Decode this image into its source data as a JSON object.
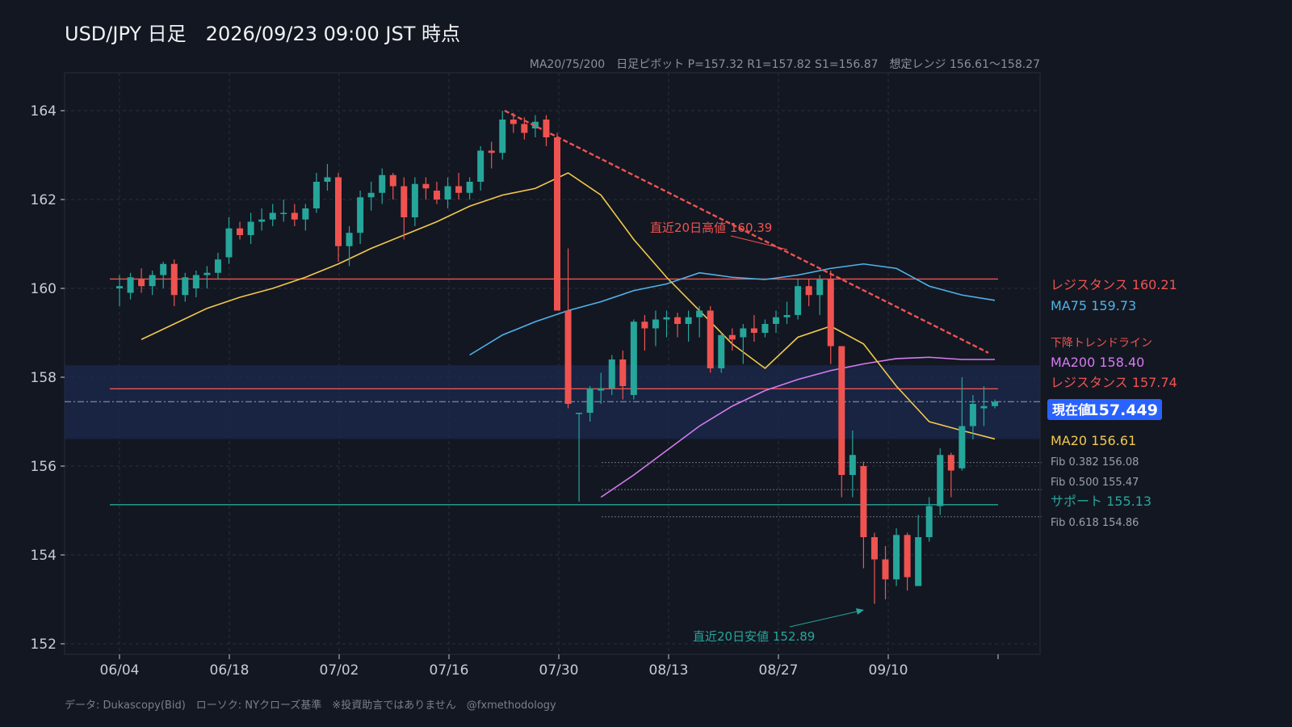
{
  "title": "USD/JPY 日足　2026/09/23 09:00 JST 時点",
  "subtitle": "MA20/75/200　日足ピボット P=157.32 R1=157.82 S1=156.87　想定レンジ 156.61〜158.27",
  "footer": "データ: Dukascopy(Bid)　ローソク: NYクローズ基準　※投資助言ではありません　@fxmethodology",
  "colors": {
    "background": "#131722",
    "up": "#26a69a",
    "down": "#ef5350",
    "ma20": "#f2c94c",
    "ma75": "#4fb3e8",
    "ma200": "#d67bef",
    "resistance": "#ef5350",
    "support": "#26a69a",
    "range_band": "#1b2a4e",
    "current_badge": "#2962ff"
  },
  "chart_data": {
    "type": "candlestick",
    "ylim": [
      152,
      165
    ],
    "yticks": [
      152,
      154,
      156,
      158,
      160,
      162,
      164
    ],
    "xticks": [
      "06/04",
      "06/18",
      "07/02",
      "07/16",
      "07/30",
      "08/13",
      "08/27",
      "09/10"
    ],
    "grid": true,
    "candles": [
      {
        "o": 160.0,
        "h": 160.3,
        "l": 159.6,
        "c": 160.05
      },
      {
        "o": 159.9,
        "h": 160.35,
        "l": 159.75,
        "c": 160.25
      },
      {
        "o": 160.2,
        "h": 160.45,
        "l": 159.9,
        "c": 160.05
      },
      {
        "o": 160.05,
        "h": 160.4,
        "l": 159.85,
        "c": 160.3
      },
      {
        "o": 160.3,
        "h": 160.6,
        "l": 160.0,
        "c": 160.55
      },
      {
        "o": 160.55,
        "h": 160.65,
        "l": 159.6,
        "c": 159.85
      },
      {
        "o": 159.85,
        "h": 160.35,
        "l": 159.7,
        "c": 160.25
      },
      {
        "o": 160.0,
        "h": 160.4,
        "l": 159.8,
        "c": 160.3
      },
      {
        "o": 160.3,
        "h": 160.5,
        "l": 160.0,
        "c": 160.35
      },
      {
        "o": 160.35,
        "h": 160.8,
        "l": 160.2,
        "c": 160.65
      },
      {
        "o": 160.7,
        "h": 161.6,
        "l": 160.55,
        "c": 161.35
      },
      {
        "o": 161.35,
        "h": 161.5,
        "l": 161.1,
        "c": 161.2
      },
      {
        "o": 161.2,
        "h": 161.7,
        "l": 161.0,
        "c": 161.5
      },
      {
        "o": 161.5,
        "h": 161.8,
        "l": 161.3,
        "c": 161.55
      },
      {
        "o": 161.55,
        "h": 161.9,
        "l": 161.4,
        "c": 161.7
      },
      {
        "o": 161.7,
        "h": 162.0,
        "l": 161.5,
        "c": 161.7
      },
      {
        "o": 161.7,
        "h": 161.9,
        "l": 161.4,
        "c": 161.55
      },
      {
        "o": 161.55,
        "h": 161.9,
        "l": 161.3,
        "c": 161.8
      },
      {
        "o": 161.8,
        "h": 162.6,
        "l": 161.7,
        "c": 162.4
      },
      {
        "o": 162.4,
        "h": 162.8,
        "l": 162.2,
        "c": 162.5
      },
      {
        "o": 162.5,
        "h": 162.6,
        "l": 160.6,
        "c": 160.95
      },
      {
        "o": 160.95,
        "h": 161.4,
        "l": 160.5,
        "c": 161.25
      },
      {
        "o": 161.25,
        "h": 162.2,
        "l": 161.0,
        "c": 162.05
      },
      {
        "o": 162.05,
        "h": 162.4,
        "l": 161.75,
        "c": 162.15
      },
      {
        "o": 162.15,
        "h": 162.7,
        "l": 161.9,
        "c": 162.55
      },
      {
        "o": 162.55,
        "h": 162.6,
        "l": 162.0,
        "c": 162.3
      },
      {
        "o": 162.3,
        "h": 162.5,
        "l": 161.1,
        "c": 161.6
      },
      {
        "o": 161.6,
        "h": 162.5,
        "l": 161.4,
        "c": 162.35
      },
      {
        "o": 162.35,
        "h": 162.5,
        "l": 162.0,
        "c": 162.25
      },
      {
        "o": 162.2,
        "h": 162.4,
        "l": 161.9,
        "c": 162.0
      },
      {
        "o": 162.0,
        "h": 162.5,
        "l": 161.8,
        "c": 162.3
      },
      {
        "o": 162.3,
        "h": 162.6,
        "l": 162.0,
        "c": 162.15
      },
      {
        "o": 162.15,
        "h": 162.5,
        "l": 162.0,
        "c": 162.4
      },
      {
        "o": 162.4,
        "h": 163.2,
        "l": 162.2,
        "c": 163.1
      },
      {
        "o": 163.1,
        "h": 163.3,
        "l": 162.7,
        "c": 163.05
      },
      {
        "o": 163.05,
        "h": 164.0,
        "l": 162.9,
        "c": 163.8
      },
      {
        "o": 163.8,
        "h": 163.95,
        "l": 163.5,
        "c": 163.7
      },
      {
        "o": 163.7,
        "h": 163.85,
        "l": 163.35,
        "c": 163.5
      },
      {
        "o": 163.6,
        "h": 163.9,
        "l": 163.4,
        "c": 163.75
      },
      {
        "o": 163.8,
        "h": 163.9,
        "l": 163.2,
        "c": 163.4
      },
      {
        "o": 163.4,
        "h": 163.5,
        "l": 159.5,
        "c": 159.5
      },
      {
        "o": 159.5,
        "h": 160.9,
        "l": 157.3,
        "c": 157.4
      },
      {
        "o": 157.2,
        "h": 157.2,
        "l": 155.2,
        "c": 157.2
      },
      {
        "o": 157.2,
        "h": 157.8,
        "l": 157.0,
        "c": 157.75
      },
      {
        "o": 157.7,
        "h": 158.1,
        "l": 157.4,
        "c": 157.75
      },
      {
        "o": 157.75,
        "h": 158.5,
        "l": 157.6,
        "c": 158.4
      },
      {
        "o": 158.4,
        "h": 158.6,
        "l": 157.5,
        "c": 157.8
      },
      {
        "o": 157.6,
        "h": 159.3,
        "l": 157.5,
        "c": 159.25
      },
      {
        "o": 159.25,
        "h": 159.4,
        "l": 158.6,
        "c": 159.1
      },
      {
        "o": 159.1,
        "h": 159.5,
        "l": 158.7,
        "c": 159.3
      },
      {
        "o": 159.3,
        "h": 159.5,
        "l": 158.9,
        "c": 159.35
      },
      {
        "o": 159.35,
        "h": 159.45,
        "l": 158.9,
        "c": 159.2
      },
      {
        "o": 159.2,
        "h": 159.5,
        "l": 158.8,
        "c": 159.35
      },
      {
        "o": 159.35,
        "h": 159.6,
        "l": 158.9,
        "c": 159.5
      },
      {
        "o": 159.5,
        "h": 159.6,
        "l": 158.1,
        "c": 158.2
      },
      {
        "o": 158.2,
        "h": 159.0,
        "l": 158.1,
        "c": 158.95
      },
      {
        "o": 158.95,
        "h": 159.1,
        "l": 158.6,
        "c": 158.85
      },
      {
        "o": 158.9,
        "h": 159.2,
        "l": 158.3,
        "c": 159.1
      },
      {
        "o": 159.1,
        "h": 159.4,
        "l": 158.8,
        "c": 159.0
      },
      {
        "o": 159.0,
        "h": 159.3,
        "l": 158.9,
        "c": 159.2
      },
      {
        "o": 159.2,
        "h": 159.5,
        "l": 159.0,
        "c": 159.35
      },
      {
        "o": 159.35,
        "h": 159.7,
        "l": 159.2,
        "c": 159.4
      },
      {
        "o": 159.4,
        "h": 160.2,
        "l": 159.3,
        "c": 160.05
      },
      {
        "o": 160.05,
        "h": 160.2,
        "l": 159.6,
        "c": 159.85
      },
      {
        "o": 159.85,
        "h": 160.3,
        "l": 159.4,
        "c": 160.2
      },
      {
        "o": 160.2,
        "h": 160.4,
        "l": 158.3,
        "c": 158.7
      },
      {
        "o": 158.7,
        "h": 158.7,
        "l": 155.3,
        "c": 155.8
      },
      {
        "o": 155.8,
        "h": 156.8,
        "l": 155.3,
        "c": 156.25
      },
      {
        "o": 156.0,
        "h": 156.1,
        "l": 153.7,
        "c": 154.4
      },
      {
        "o": 154.4,
        "h": 154.5,
        "l": 152.9,
        "c": 153.9
      },
      {
        "o": 153.9,
        "h": 154.2,
        "l": 153.0,
        "c": 153.45
      },
      {
        "o": 153.45,
        "h": 154.6,
        "l": 153.3,
        "c": 154.45
      },
      {
        "o": 154.45,
        "h": 154.5,
        "l": 153.2,
        "c": 153.5
      },
      {
        "o": 153.3,
        "h": 154.9,
        "l": 153.3,
        "c": 154.4
      },
      {
        "o": 154.4,
        "h": 155.3,
        "l": 154.3,
        "c": 155.1
      },
      {
        "o": 155.1,
        "h": 156.4,
        "l": 154.9,
        "c": 156.25
      },
      {
        "o": 156.25,
        "h": 156.3,
        "l": 155.3,
        "c": 155.9
      },
      {
        "o": 155.95,
        "h": 158.0,
        "l": 155.9,
        "c": 156.9
      },
      {
        "o": 156.9,
        "h": 157.6,
        "l": 156.6,
        "c": 157.4
      },
      {
        "o": 157.3,
        "h": 157.8,
        "l": 156.9,
        "c": 157.35
      },
      {
        "o": 157.35,
        "h": 157.5,
        "l": 157.3,
        "c": 157.449
      }
    ],
    "ma_series": [
      {
        "name": "MA20",
        "values": [
          158.85,
          159.2,
          159.55,
          159.8,
          160.0,
          160.25,
          160.55,
          160.9,
          161.2,
          161.5,
          161.85,
          162.1,
          162.25,
          162.6,
          162.1,
          161.1,
          160.25,
          159.5,
          158.75,
          158.2,
          158.9,
          159.15,
          158.75,
          157.8,
          157.0,
          156.8,
          156.61
        ]
      },
      {
        "name": "MA75",
        "values": [
          158.5,
          158.95,
          159.25,
          159.5,
          159.7,
          159.95,
          160.1,
          160.35,
          160.25,
          160.2,
          160.3,
          160.45,
          160.55,
          160.45,
          160.05,
          159.85,
          159.73
        ]
      },
      {
        "name": "MA200",
        "values": [
          155.3,
          155.8,
          156.35,
          156.9,
          157.35,
          157.7,
          157.95,
          158.15,
          158.3,
          158.42,
          158.45,
          158.4,
          158.4
        ]
      }
    ],
    "levels": [
      {
        "label": "レジスタンス 160.21",
        "value": 160.21
      },
      {
        "label": "MA75 159.73",
        "value": 159.73
      },
      {
        "label": "下降トレンドライン",
        "value": 158.55
      },
      {
        "label": "MA200 158.40",
        "value": 158.4
      },
      {
        "label": "レジスタンス 157.74",
        "value": 157.74
      },
      {
        "label": "MA20 156.61",
        "value": 156.61
      },
      {
        "label": "Fib 0.382 156.08",
        "value": 156.08
      },
      {
        "label": "Fib 0.500 155.47",
        "value": 155.47
      },
      {
        "label": "サポート 155.13",
        "value": 155.13
      },
      {
        "label": "Fib 0.618 154.86",
        "value": 154.86
      }
    ],
    "range_band": [
      156.61,
      158.27
    ],
    "current_price_label": "現在値",
    "current_price": "157.449",
    "trendline": {
      "from": 164.0,
      "to": 158.55
    },
    "annotations": [
      {
        "text": "直近20日高値 160.39",
        "value": 160.39
      },
      {
        "text": "直近20日安値 152.89",
        "value": 152.89
      }
    ]
  }
}
